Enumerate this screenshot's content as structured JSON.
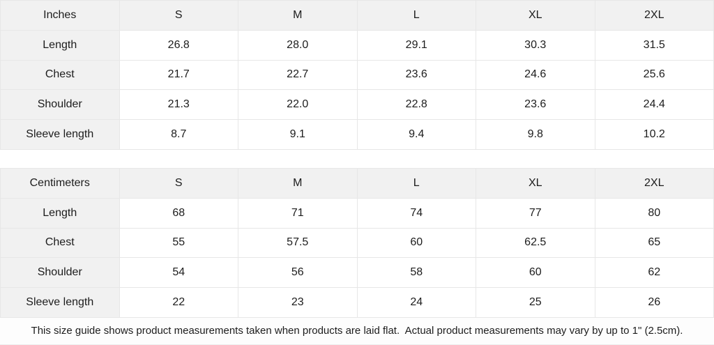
{
  "colors": {
    "header_bg": "#f1f1f1",
    "cell_bg": "#ffffff",
    "border": "#e7e7e7",
    "text": "#1c1c1c"
  },
  "tables": [
    {
      "unit_label": "Inches",
      "size_headers": [
        "S",
        "M",
        "L",
        "XL",
        "2XL"
      ],
      "rows": [
        {
          "label": "Length",
          "values": [
            "26.8",
            "28.0",
            "29.1",
            "30.3",
            "31.5"
          ]
        },
        {
          "label": "Chest",
          "values": [
            "21.7",
            "22.7",
            "23.6",
            "24.6",
            "25.6"
          ]
        },
        {
          "label": "Shoulder",
          "values": [
            "21.3",
            "22.0",
            "22.8",
            "23.6",
            "24.4"
          ]
        },
        {
          "label": "Sleeve length",
          "values": [
            "8.7",
            "9.1",
            "9.4",
            "9.8",
            "10.2"
          ]
        }
      ]
    },
    {
      "unit_label": "Centimeters",
      "size_headers": [
        "S",
        "M",
        "L",
        "XL",
        "2XL"
      ],
      "rows": [
        {
          "label": "Length",
          "values": [
            "68",
            "71",
            "74",
            "77",
            "80"
          ]
        },
        {
          "label": "Chest",
          "values": [
            "55",
            "57.5",
            "60",
            "62.5",
            "65"
          ]
        },
        {
          "label": "Shoulder",
          "values": [
            "54",
            "56",
            "58",
            "60",
            "62"
          ]
        },
        {
          "label": "Sleeve length",
          "values": [
            "22",
            "23",
            "24",
            "25",
            "26"
          ]
        }
      ]
    }
  ],
  "footer": {
    "note": "This size guide shows product measurements taken when products are laid flat.  Actual product measurements may vary by up to 1\" (2.5cm)."
  }
}
